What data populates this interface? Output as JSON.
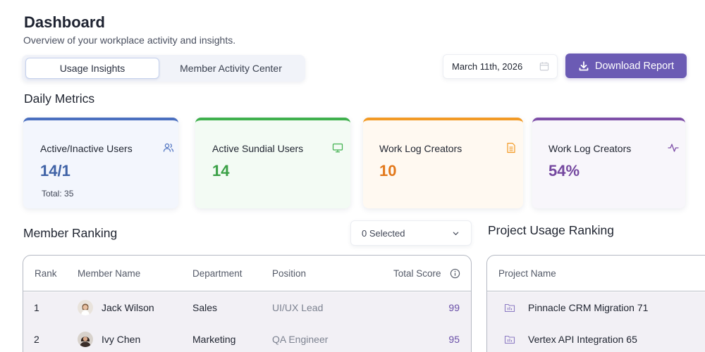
{
  "header": {
    "title": "Dashboard",
    "subtitle": "Overview of your workplace activity and insights."
  },
  "tabs": [
    {
      "label": "Usage Insights",
      "active": true
    },
    {
      "label": "Member Activity Center",
      "active": false
    }
  ],
  "date_picker": {
    "value": "March 11th, 2026",
    "icon": "calendar-icon"
  },
  "download_button": {
    "label": "Download Report",
    "icon": "download-icon"
  },
  "daily_metrics": {
    "title": "Daily Metrics",
    "cards": [
      {
        "label": "Active/Inactive Users",
        "value": "14/1",
        "sub": "Total: 35",
        "icon": "users-icon",
        "accent": "#4a6fbf"
      },
      {
        "label": "Active Sundial Users",
        "value": "14",
        "icon": "monitor-icon",
        "accent": "#3fb04d"
      },
      {
        "label": "Work Log Creators",
        "value": "10",
        "icon": "document-icon",
        "accent": "#f29a25"
      },
      {
        "label": "Work Log Creators",
        "value": "54%",
        "icon": "activity-icon",
        "accent": "#7e4fa8"
      }
    ]
  },
  "member_ranking": {
    "title": "Member Ranking",
    "filter": {
      "value": "0 Selected"
    },
    "columns": [
      "Rank",
      "Member Name",
      "Department",
      "Position",
      "Total Score"
    ],
    "rows": [
      {
        "rank": "1",
        "name": "Jack Wilson",
        "department": "Sales",
        "position": "UI/UX Lead",
        "score": "99"
      },
      {
        "rank": "2",
        "name": "Ivy Chen",
        "department": "Marketing",
        "position": "QA Engineer",
        "score": "95"
      }
    ]
  },
  "project_ranking": {
    "title": "Project Usage Ranking",
    "columns": [
      "Project Name"
    ],
    "rows": [
      {
        "name": "Pinnacle CRM Migration 71"
      },
      {
        "name": "Vertex API Integration 65"
      }
    ]
  }
}
